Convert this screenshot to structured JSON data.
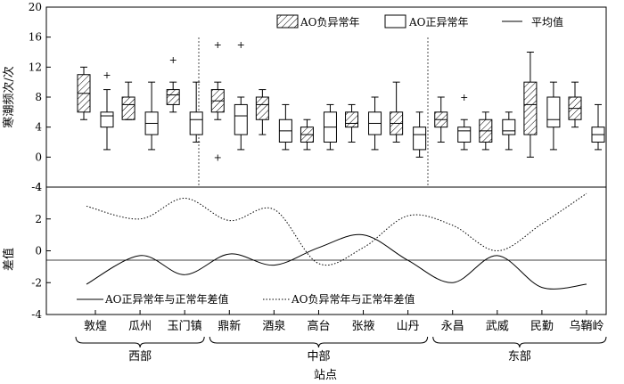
{
  "chart_data": [
    {
      "type": "box",
      "ylabel": "寒潮频次/次",
      "ylim": [
        -4,
        20
      ],
      "yticks": [
        -4,
        0,
        4,
        8,
        12,
        16,
        20
      ],
      "legend": {
        "placement": "top-right",
        "neg": "AO负异常年",
        "pos": "AO正异常年",
        "mean": "平均值"
      },
      "stations": [
        "敦煌",
        "瓜州",
        "玉门镇",
        "鼎新",
        "酒泉",
        "高台",
        "张掖",
        "山丹",
        "永昌",
        "武威",
        "民勤",
        "乌鞘岭"
      ],
      "boxes": {
        "neg": [
          {
            "min": 5,
            "q1": 6,
            "median": 8.5,
            "q3": 11,
            "max": 12
          },
          {
            "min": 5,
            "q1": 5,
            "median": 7,
            "q3": 8,
            "max": 10
          },
          {
            "min": 6,
            "q1": 7,
            "median": 8.3,
            "q3": 9,
            "max": 10,
            "outliers": [
              13
            ]
          },
          {
            "min": 5,
            "q1": 6,
            "median": 7.5,
            "q3": 9,
            "max": 10,
            "outliers": [
              15,
              0
            ]
          },
          {
            "min": 3,
            "q1": 5,
            "median": 7,
            "q3": 8,
            "max": 9
          },
          {
            "min": 1,
            "q1": 2,
            "median": 3,
            "q3": 4,
            "max": 5
          },
          {
            "min": 2,
            "q1": 4,
            "median": 4.5,
            "q3": 6,
            "max": 7
          },
          {
            "min": 2,
            "q1": 3,
            "median": 4.5,
            "q3": 6,
            "max": 10
          },
          {
            "min": 2,
            "q1": 4,
            "median": 5,
            "q3": 6,
            "max": 8
          },
          {
            "min": 1,
            "q1": 2,
            "median": 3.5,
            "q3": 5,
            "max": 6
          },
          {
            "min": 0,
            "q1": 3,
            "median": 7,
            "q3": 10,
            "max": 14
          },
          {
            "min": 4,
            "q1": 5,
            "median": 6.5,
            "q3": 8,
            "max": 10
          }
        ],
        "pos": [
          {
            "min": 1,
            "q1": 4,
            "median": 5.5,
            "q3": 6,
            "max": 9,
            "outliers": [
              11
            ]
          },
          {
            "min": 1,
            "q1": 3,
            "median": 4.5,
            "q3": 6,
            "max": 10
          },
          {
            "min": 2,
            "q1": 3,
            "median": 5,
            "q3": 6,
            "max": 10
          },
          {
            "min": 1,
            "q1": 3,
            "median": 5.5,
            "q3": 7,
            "max": 8,
            "outliers": [
              15
            ]
          },
          {
            "min": 1,
            "q1": 2,
            "median": 3.5,
            "q3": 5,
            "max": 7
          },
          {
            "min": 1,
            "q1": 2,
            "median": 4,
            "q3": 6,
            "max": 7
          },
          {
            "min": 1,
            "q1": 3,
            "median": 4.5,
            "q3": 6,
            "max": 8
          },
          {
            "min": 0,
            "q1": 1,
            "median": 3,
            "q3": 4,
            "max": 6
          },
          {
            "min": 1,
            "q1": 2,
            "median": 3.5,
            "q3": 4,
            "max": 5,
            "outliers": [
              8
            ]
          },
          {
            "min": 1,
            "q1": 3,
            "median": 3.5,
            "q3": 5,
            "max": 6
          },
          {
            "min": 1,
            "q1": 4,
            "median": 5,
            "q3": 8,
            "max": 10
          },
          {
            "min": 1,
            "q1": 2,
            "median": 3,
            "q3": 4,
            "max": 7
          }
        ]
      }
    },
    {
      "type": "line",
      "ylabel": "差值",
      "ylim": [
        -4,
        4
      ],
      "yticks": [
        -4,
        -2,
        0,
        2,
        4
      ],
      "x": [
        "敦煌",
        "瓜州",
        "玉门镇",
        "鼎新",
        "酒泉",
        "高台",
        "张掖",
        "山丹",
        "永昌",
        "武威",
        "民勤",
        "乌鞘岭"
      ],
      "xlabel": "站点",
      "series": [
        {
          "name": "AO正异常年与正常年差值",
          "style": "solid",
          "values": [
            -2.1,
            -0.3,
            -1.5,
            -0.2,
            -0.9,
            0.2,
            1.0,
            -0.6,
            -2.0,
            -0.3,
            -2.3,
            -2.1
          ]
        },
        {
          "name": "AO负异常年与正常年差值",
          "style": "dotted",
          "values": [
            2.8,
            2.0,
            3.3,
            1.9,
            2.6,
            -0.8,
            0.2,
            2.2,
            1.6,
            0.0,
            1.7,
            3.6
          ]
        }
      ],
      "regions": [
        {
          "label": "西部",
          "from": "敦煌",
          "to": "玉门镇"
        },
        {
          "label": "中部",
          "from": "鼎新",
          "to": "山丹"
        },
        {
          "label": "东部",
          "from": "永昌",
          "to": "乌鞘岭"
        }
      ]
    }
  ]
}
